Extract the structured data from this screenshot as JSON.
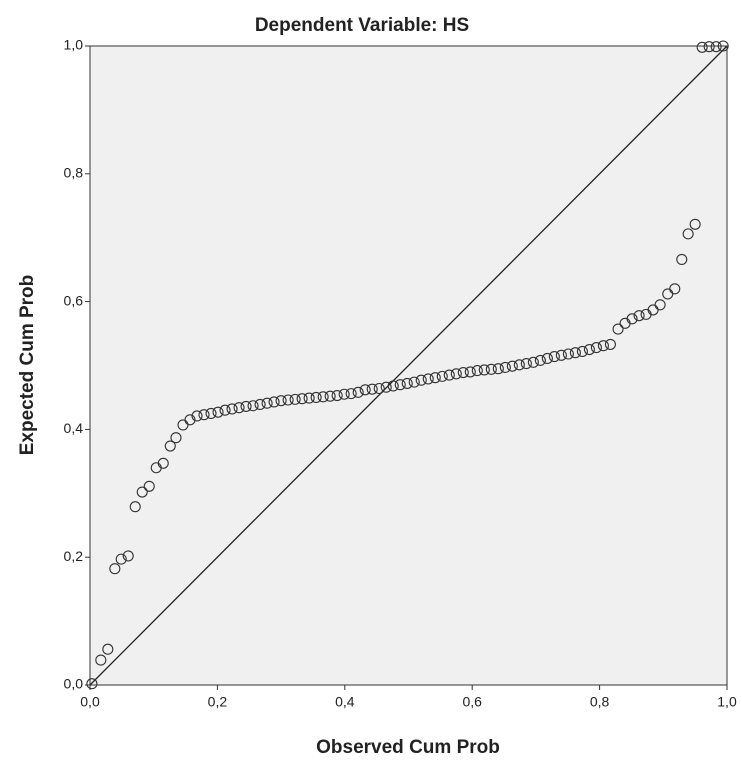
{
  "chart_data": {
    "type": "scatter",
    "title": "Dependent Variable: HS",
    "x_label": "Observed Cum Prob",
    "y_label": "Expected Cum Prob",
    "series": [
      {
        "color": "#333333",
        "x": [
          0.003,
          0.017,
          0.028,
          0.039,
          0.049,
          0.06,
          0.071,
          0.082,
          0.093,
          0.104,
          0.115,
          0.126,
          0.135,
          0.146,
          0.157,
          0.168,
          0.179,
          0.19,
          0.201,
          0.212,
          0.223,
          0.234,
          0.245,
          0.256,
          0.267,
          0.278,
          0.289,
          0.3,
          0.311,
          0.322,
          0.333,
          0.344,
          0.355,
          0.366,
          0.377,
          0.388,
          0.399,
          0.41,
          0.421,
          0.432,
          0.443,
          0.454,
          0.465,
          0.476,
          0.487,
          0.498,
          0.509,
          0.52,
          0.531,
          0.542,
          0.553,
          0.564,
          0.575,
          0.586,
          0.597,
          0.608,
          0.619,
          0.63,
          0.641,
          0.652,
          0.663,
          0.674,
          0.685,
          0.696,
          0.707,
          0.718,
          0.729,
          0.74,
          0.751,
          0.762,
          0.773,
          0.784,
          0.795,
          0.806,
          0.817,
          0.829,
          0.84,
          0.851,
          0.862,
          0.873,
          0.884,
          0.895,
          0.907,
          0.918,
          0.929,
          0.939,
          0.95,
          0.961,
          0.972,
          0.983,
          0.994
        ],
        "values": [
          0.002,
          0.039,
          0.056,
          0.182,
          0.197,
          0.202,
          0.279,
          0.302,
          0.311,
          0.34,
          0.347,
          0.374,
          0.387,
          0.407,
          0.415,
          0.421,
          0.423,
          0.425,
          0.427,
          0.43,
          0.432,
          0.434,
          0.436,
          0.437,
          0.439,
          0.441,
          0.443,
          0.445,
          0.446,
          0.447,
          0.448,
          0.449,
          0.45,
          0.451,
          0.452,
          0.453,
          0.455,
          0.456,
          0.458,
          0.462,
          0.463,
          0.464,
          0.466,
          0.468,
          0.47,
          0.472,
          0.474,
          0.477,
          0.479,
          0.481,
          0.483,
          0.485,
          0.487,
          0.489,
          0.49,
          0.492,
          0.493,
          0.494,
          0.495,
          0.497,
          0.499,
          0.501,
          0.503,
          0.505,
          0.508,
          0.511,
          0.514,
          0.516,
          0.518,
          0.52,
          0.522,
          0.525,
          0.528,
          0.531,
          0.533,
          0.557,
          0.566,
          0.573,
          0.578,
          0.58,
          0.587,
          0.595,
          0.612,
          0.62,
          0.666,
          0.706,
          0.721,
          0.998,
          0.999,
          0.999,
          1.0
        ]
      }
    ],
    "xlim": [
      0,
      1
    ],
    "ylim": [
      0,
      1
    ],
    "xticks": [
      {
        "value": 0,
        "label": "0,0"
      },
      {
        "value": 0.2,
        "label": "0,2"
      },
      {
        "value": 0.4,
        "label": "0,4"
      },
      {
        "value": 0.6,
        "label": "0,6"
      },
      {
        "value": 0.8,
        "label": "0,8"
      },
      {
        "value": 1,
        "label": "1,0"
      }
    ],
    "yticks": [
      {
        "value": 0,
        "label": "0,0"
      },
      {
        "value": 0.2,
        "label": "0,2"
      },
      {
        "value": 0.4,
        "label": "0,4"
      },
      {
        "value": 0.6,
        "label": "0,6"
      },
      {
        "value": 0.8,
        "label": "0,8"
      },
      {
        "value": 1,
        "label": "1,0"
      }
    ]
  }
}
